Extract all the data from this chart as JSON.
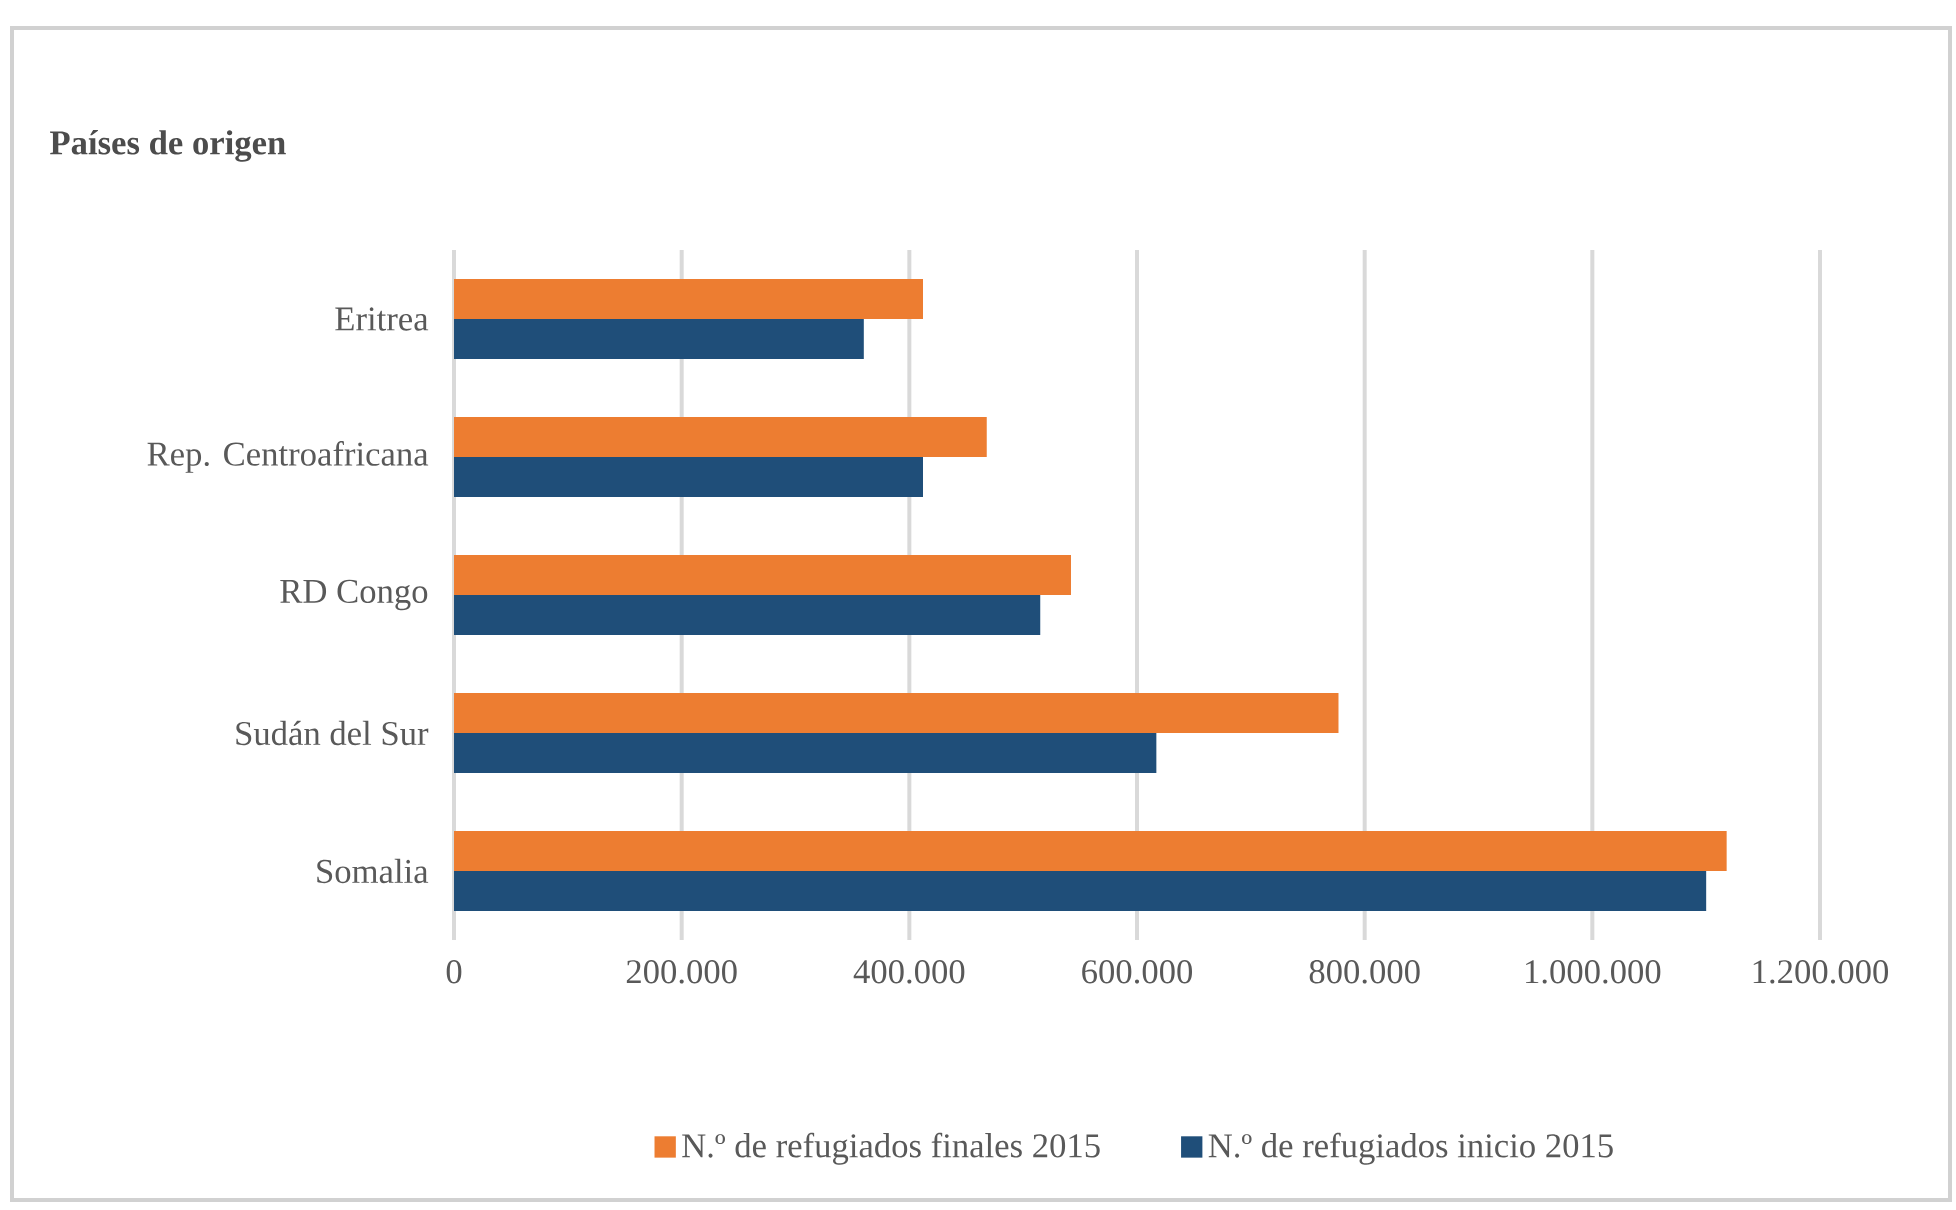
{
  "chart_data": {
    "type": "bar",
    "orientation": "horizontal",
    "ylabel": "Países de origen",
    "categories": [
      "Eritrea",
      "Rep. Centroafricana",
      "RD Congo",
      "Sudán del Sur",
      "Somalia"
    ],
    "series": [
      {
        "name": "N.º de refugiados  finales  2015",
        "color": "#ed7d31",
        "values": [
          412000,
          468000,
          542000,
          777000,
          1118000
        ]
      },
      {
        "name": "N.º de refugiados  inicio  2015",
        "color": "#1f4e79",
        "values": [
          360000,
          412000,
          515000,
          617000,
          1100000
        ]
      }
    ],
    "xlim": [
      0,
      1200000
    ],
    "xticks": [
      0,
      {
        "value": 200000,
        "label": "200.000"
      },
      {
        "value": 400000,
        "label": "400.000"
      },
      {
        "value": 600000,
        "label": "600.000"
      },
      {
        "value": 800000,
        "label": "800.000"
      },
      {
        "value": 1000000,
        "label": "1.000.000"
      },
      {
        "value": 1200000,
        "label": "1.200.000"
      }
    ],
    "grid": "x",
    "legend": "bottom"
  }
}
